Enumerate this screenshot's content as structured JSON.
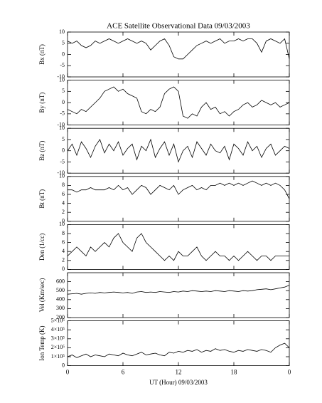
{
  "title": "ACE Satellite Observational Data   09/03/2003",
  "x_label": "UT (Hour)   09/03/2003",
  "xlim": [
    0,
    24
  ],
  "xticks": [
    0,
    6,
    12,
    18,
    {
      "value": 24,
      "label": "0"
    }
  ],
  "x": [
    0,
    0.5,
    1,
    1.5,
    2,
    2.5,
    3,
    3.5,
    4,
    4.5,
    5,
    5.5,
    6,
    6.5,
    7,
    7.5,
    8,
    8.5,
    9,
    9.5,
    10,
    10.5,
    11,
    11.5,
    12,
    12.5,
    13,
    13.5,
    14,
    14.5,
    15,
    15.5,
    16,
    16.5,
    17,
    17.5,
    18,
    18.5,
    19,
    19.5,
    20,
    20.5,
    21,
    21.5,
    22,
    22.5,
    23,
    23.5,
    24
  ],
  "chart_data": [
    {
      "type": "line",
      "y_label": "Bx (nT)",
      "ylim": [
        -10,
        10
      ],
      "yticks": [
        -10,
        -5,
        0,
        5,
        10
      ],
      "color": "#000000",
      "values": [
        6,
        5,
        6,
        4,
        3,
        4,
        6,
        5,
        6,
        7,
        6,
        5,
        6,
        7,
        6,
        5,
        6,
        5,
        2,
        4,
        6,
        7,
        4,
        -1,
        -2,
        -2,
        0,
        2,
        4,
        5,
        6,
        5,
        6,
        7,
        5,
        6,
        6,
        7,
        6,
        7,
        7,
        5,
        1,
        6,
        7,
        6,
        5,
        7,
        -2
      ]
    },
    {
      "type": "line",
      "y_label": "By (nT)",
      "ylim": [
        -10,
        10
      ],
      "yticks": [
        -10,
        -5,
        0,
        5,
        10
      ],
      "color": "#000000",
      "values": [
        -3,
        -4,
        -5,
        -3,
        -4,
        -2,
        0,
        2,
        5,
        6,
        7,
        5,
        6,
        4,
        3,
        2,
        -4,
        -5,
        -3,
        -4,
        -2,
        4,
        6,
        7,
        5,
        -6,
        -7,
        -5,
        -6,
        -2,
        0,
        -3,
        -2,
        -5,
        -4,
        -6,
        -4,
        -3,
        -1,
        0,
        -2,
        -1,
        1,
        0,
        -1,
        0,
        -2,
        -1,
        0
      ]
    },
    {
      "type": "line",
      "y_label": "Bz (nT)",
      "ylim": [
        -10,
        10
      ],
      "yticks": [
        -10,
        -5,
        0,
        5,
        10
      ],
      "color": "#000000",
      "values": [
        0,
        3,
        -2,
        4,
        1,
        -3,
        2,
        5,
        -1,
        3,
        0,
        4,
        -2,
        1,
        3,
        -4,
        2,
        0,
        5,
        -3,
        1,
        4,
        -2,
        3,
        -5,
        0,
        2,
        -3,
        4,
        1,
        -2,
        3,
        0,
        -1,
        2,
        -4,
        3,
        1,
        -2,
        4,
        0,
        2,
        -3,
        1,
        3,
        -2,
        0,
        2,
        1
      ]
    },
    {
      "type": "line",
      "y_label": "Bt (nT)",
      "ylim": [
        0,
        10
      ],
      "yticks": [
        0,
        2,
        4,
        6,
        8,
        10
      ],
      "color": "#000000",
      "values": [
        7,
        7,
        6.5,
        7,
        7,
        7.5,
        7,
        7,
        7,
        7.5,
        7,
        8,
        7,
        7.5,
        6,
        7,
        8,
        7.5,
        6,
        7,
        8,
        7.5,
        7,
        8,
        6,
        7,
        7.5,
        8,
        7,
        7.5,
        7,
        8,
        8,
        8.5,
        8,
        8.5,
        8,
        8.5,
        8,
        8.5,
        9,
        8.5,
        8,
        8.5,
        8,
        8.5,
        8,
        7,
        5
      ]
    },
    {
      "type": "line",
      "y_label": "Den (1/cc)",
      "ylim": [
        0,
        10
      ],
      "yticks": [
        0,
        2,
        4,
        6,
        8,
        10
      ],
      "color": "#000000",
      "values": [
        3,
        4,
        5,
        4,
        3,
        5,
        4,
        5,
        6,
        5,
        7,
        8,
        6,
        5,
        4,
        7,
        8,
        6,
        5,
        4,
        3,
        2,
        3,
        2,
        4,
        3,
        3,
        4,
        5,
        3,
        2,
        3,
        4,
        3,
        3,
        2,
        3,
        2,
        3,
        4,
        3,
        2,
        3,
        3,
        2,
        3,
        3,
        3,
        3
      ]
    },
    {
      "type": "line",
      "y_label": "Vel (Km/sec)",
      "ylim": [
        200,
        700
      ],
      "yticks": [
        200,
        300,
        400,
        500,
        600
      ],
      "color": "#000000",
      "values": [
        460,
        465,
        470,
        460,
        470,
        475,
        470,
        480,
        475,
        480,
        485,
        480,
        475,
        480,
        470,
        485,
        490,
        480,
        485,
        480,
        490,
        485,
        480,
        490,
        485,
        495,
        490,
        500,
        495,
        490,
        495,
        490,
        500,
        495,
        490,
        500,
        495,
        490,
        500,
        495,
        500,
        510,
        515,
        520,
        510,
        520,
        530,
        540,
        560
      ]
    },
    {
      "type": "line",
      "y_label": "Ion Temp (K)",
      "ylim": [
        0,
        500000
      ],
      "yticks": [
        0,
        {
          "value": 100000,
          "label": "1×10⁵"
        },
        {
          "value": 200000,
          "label": "2×10⁵"
        },
        {
          "value": 300000,
          "label": "3×10⁵"
        },
        {
          "value": 400000,
          "label": "4×10⁵"
        },
        {
          "value": 500000,
          "label": "5×10⁵"
        }
      ],
      "color": "#000000",
      "values": [
        100000,
        120000,
        90000,
        110000,
        130000,
        100000,
        120000,
        110000,
        100000,
        130000,
        120000,
        110000,
        140000,
        120000,
        110000,
        130000,
        150000,
        120000,
        130000,
        140000,
        120000,
        110000,
        150000,
        140000,
        160000,
        150000,
        170000,
        160000,
        180000,
        150000,
        170000,
        160000,
        190000,
        170000,
        180000,
        160000,
        150000,
        170000,
        160000,
        180000,
        170000,
        160000,
        180000,
        170000,
        150000,
        200000,
        230000,
        250000,
        200000
      ]
    }
  ]
}
